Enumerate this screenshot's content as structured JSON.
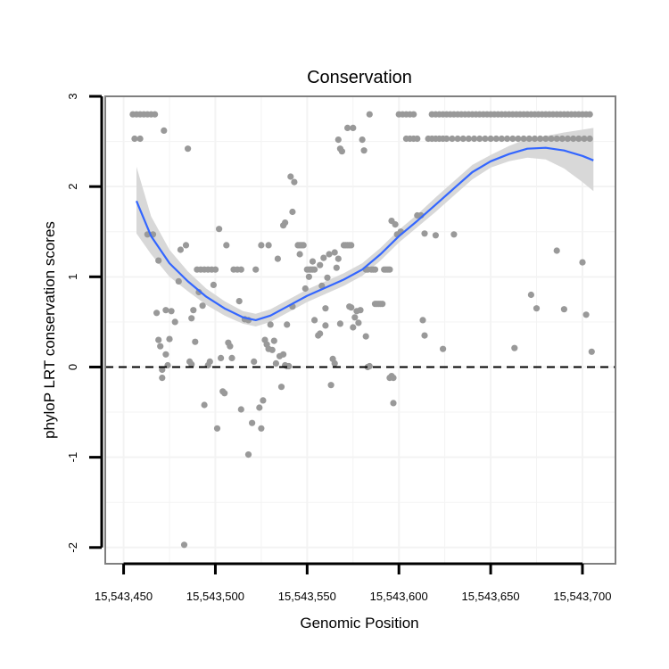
{
  "chart_data": {
    "type": "scatter",
    "title": "Conservation",
    "xlabel": "Genomic Position",
    "ylabel": "phyloP LRT conservation scores",
    "xlim": [
      15543440,
      15543718
    ],
    "ylim": [
      -2.18,
      3.0
    ],
    "x_ticks": [
      15543450,
      15543500,
      15543550,
      15543600,
      15543650,
      15543700
    ],
    "x_tick_labels": [
      "15,543,450",
      "15,543,500",
      "15,543,550",
      "15,543,600",
      "15,543,650",
      "15,543,700"
    ],
    "y_ticks": [
      -2,
      -1,
      0,
      1,
      2,
      3
    ],
    "y_tick_labels": [
      "-2",
      "-1",
      "0",
      "1",
      "2",
      "3"
    ],
    "reference_line": {
      "y": 0,
      "style": "dashed"
    },
    "colors": {
      "points": "#999999",
      "smooth_line": "#3366FF",
      "ribbon": "#d6d6d6",
      "panel_border": "#7f7f7f",
      "grid": "#f3f3f3"
    },
    "points": [
      [
        15543455,
        2.8
      ],
      [
        15543457,
        2.8
      ],
      [
        15543459,
        2.8
      ],
      [
        15543461,
        2.8
      ],
      [
        15543463,
        2.8
      ],
      [
        15543465,
        2.8
      ],
      [
        15543467,
        2.8
      ],
      [
        15543456,
        2.53
      ],
      [
        15543459,
        2.53
      ],
      [
        15543463,
        1.47
      ],
      [
        15543466,
        1.47
      ],
      [
        15543469,
        1.18
      ],
      [
        15543468,
        0.6
      ],
      [
        15543469,
        0.3
      ],
      [
        15543470,
        0.23
      ],
      [
        15543471,
        -0.12
      ],
      [
        15543471,
        -0.03
      ],
      [
        15543473,
        0.14
      ],
      [
        15543474,
        0.02
      ],
      [
        15543475,
        0.31
      ],
      [
        15543472,
        2.62
      ],
      [
        15543473,
        0.63
      ],
      [
        15543476,
        0.62
      ],
      [
        15543478,
        0.5
      ],
      [
        15543480,
        0.95
      ],
      [
        15543481,
        1.3
      ],
      [
        15543484,
        1.35
      ],
      [
        15543485,
        2.42
      ],
      [
        15543483,
        -1.97
      ],
      [
        15543487,
        0.54
      ],
      [
        15543488,
        0.63
      ],
      [
        15543489,
        0.28
      ],
      [
        15543486,
        0.06
      ],
      [
        15543487,
        0.03
      ],
      [
        15543490,
        1.08
      ],
      [
        15543492,
        1.08
      ],
      [
        15543494,
        1.08
      ],
      [
        15543496,
        1.08
      ],
      [
        15543498,
        1.08
      ],
      [
        15543500,
        1.08
      ],
      [
        15543491,
        0.83
      ],
      [
        15543493,
        0.68
      ],
      [
        15543494,
        -0.42
      ],
      [
        15543496,
        0.02
      ],
      [
        15543497,
        0.06
      ],
      [
        15543499,
        0.91
      ],
      [
        15543501,
        -0.68
      ],
      [
        15543502,
        1.53
      ],
      [
        15543503,
        0.1
      ],
      [
        15543504,
        -0.27
      ],
      [
        15543505,
        -0.29
      ],
      [
        15543506,
        1.35
      ],
      [
        15543507,
        0.27
      ],
      [
        15543508,
        0.23
      ],
      [
        15543509,
        0.1
      ],
      [
        15543510,
        1.08
      ],
      [
        15543512,
        1.08
      ],
      [
        15543514,
        1.08
      ],
      [
        15543513,
        0.73
      ],
      [
        15543514,
        -0.47
      ],
      [
        15543516,
        0.53
      ],
      [
        15543518,
        0.52
      ],
      [
        15543518,
        -0.97
      ],
      [
        15543520,
        -0.62
      ],
      [
        15543521,
        0.06
      ],
      [
        15543522,
        1.08
      ],
      [
        15543524,
        -0.45
      ],
      [
        15543525,
        -0.68
      ],
      [
        15543525,
        1.35
      ],
      [
        15543526,
        -0.37
      ],
      [
        15543527,
        0.3
      ],
      [
        15543528,
        0.25
      ],
      [
        15543529,
        1.35
      ],
      [
        15543529,
        0.2
      ],
      [
        15543530,
        0.47
      ],
      [
        15543531,
        0.19
      ],
      [
        15543532,
        0.29
      ],
      [
        15543533,
        0.04
      ],
      [
        15543534,
        1.2
      ],
      [
        15543535,
        0.12
      ],
      [
        15543536,
        -0.22
      ],
      [
        15543537,
        0.14
      ],
      [
        15543537,
        1.57
      ],
      [
        15543538,
        0.02
      ],
      [
        15543539,
        0.01
      ],
      [
        15543540,
        0.01
      ],
      [
        15543538,
        1.6
      ],
      [
        15543539,
        0.47
      ],
      [
        15543541,
        2.11
      ],
      [
        15543542,
        1.72
      ],
      [
        15543542,
        0.67
      ],
      [
        15543543,
        2.05
      ],
      [
        15543545,
        1.35
      ],
      [
        15543546,
        1.35
      ],
      [
        15543547,
        1.35
      ],
      [
        15543548,
        1.35
      ],
      [
        15543546,
        1.25
      ],
      [
        15543549,
        0.87
      ],
      [
        15543550,
        1.08
      ],
      [
        15543551,
        1.08
      ],
      [
        15543552,
        1.08
      ],
      [
        15543553,
        1.08
      ],
      [
        15543554,
        1.08
      ],
      [
        15543551,
        1.0
      ],
      [
        15543553,
        1.17
      ],
      [
        15543554,
        0.52
      ],
      [
        15543556,
        0.35
      ],
      [
        15543557,
        1.13
      ],
      [
        15543557,
        0.37
      ],
      [
        15543558,
        0.9
      ],
      [
        15543559,
        1.21
      ],
      [
        15543560,
        0.65
      ],
      [
        15543560,
        0.46
      ],
      [
        15543561,
        0.99
      ],
      [
        15543562,
        1.25
      ],
      [
        15543563,
        -0.2
      ],
      [
        15543564,
        0.09
      ],
      [
        15543565,
        1.27
      ],
      [
        15543565,
        0.04
      ],
      [
        15543566,
        1.1
      ],
      [
        15543567,
        1.2
      ],
      [
        15543568,
        0.48
      ],
      [
        15543570,
        1.35
      ],
      [
        15543571,
        1.35
      ],
      [
        15543572,
        1.35
      ],
      [
        15543573,
        1.35
      ],
      [
        15543574,
        1.35
      ],
      [
        15543567,
        2.52
      ],
      [
        15543568,
        2.42
      ],
      [
        15543569,
        2.39
      ],
      [
        15543572,
        2.65
      ],
      [
        15543575,
        2.65
      ],
      [
        15543573,
        0.67
      ],
      [
        15543574,
        0.66
      ],
      [
        15543575,
        0.44
      ],
      [
        15543576,
        0.55
      ],
      [
        15543577,
        0.62
      ],
      [
        15543578,
        0.49
      ],
      [
        15543579,
        0.63
      ],
      [
        15543580,
        2.52
      ],
      [
        15543581,
        2.4
      ],
      [
        15543582,
        1.08
      ],
      [
        15543583,
        1.08
      ],
      [
        15543584,
        2.8
      ],
      [
        15543582,
        0.34
      ],
      [
        15543583,
        0.0
      ],
      [
        15543584,
        0.01
      ],
      [
        15543585,
        1.08
      ],
      [
        15543586,
        1.08
      ],
      [
        15543587,
        1.08
      ],
      [
        15543587,
        0.7
      ],
      [
        15543588,
        0.7
      ],
      [
        15543589,
        0.7
      ],
      [
        15543590,
        0.7
      ],
      [
        15543591,
        0.7
      ],
      [
        15543592,
        1.08
      ],
      [
        15543593,
        1.08
      ],
      [
        15543594,
        1.08
      ],
      [
        15543595,
        1.08
      ],
      [
        15543595,
        -0.12
      ],
      [
        15543596,
        -0.1
      ],
      [
        15543597,
        -0.12
      ],
      [
        15543597,
        -0.4
      ],
      [
        15543596,
        1.62
      ],
      [
        15543598,
        1.58
      ],
      [
        15543599,
        1.47
      ],
      [
        15543601,
        1.5
      ],
      [
        15543600,
        2.8
      ],
      [
        15543602,
        2.8
      ],
      [
        15543604,
        2.8
      ],
      [
        15543606,
        2.8
      ],
      [
        15543608,
        2.8
      ],
      [
        15543604,
        2.53
      ],
      [
        15543606,
        2.53
      ],
      [
        15543608,
        2.53
      ],
      [
        15543610,
        2.53
      ],
      [
        15543610,
        1.68
      ],
      [
        15543612,
        1.68
      ],
      [
        15543613,
        0.52
      ],
      [
        15543614,
        0.35
      ],
      [
        15543614,
        1.48
      ],
      [
        15543618,
        2.8
      ],
      [
        15543620,
        2.8
      ],
      [
        15543622,
        2.8
      ],
      [
        15543624,
        2.8
      ],
      [
        15543626,
        2.8
      ],
      [
        15543628,
        2.8
      ],
      [
        15543630,
        2.8
      ],
      [
        15543616,
        2.53
      ],
      [
        15543618,
        2.53
      ],
      [
        15543620,
        2.53
      ],
      [
        15543622,
        2.53
      ],
      [
        15543624,
        2.53
      ],
      [
        15543626,
        2.53
      ],
      [
        15543620,
        1.46
      ],
      [
        15543624,
        0.2
      ],
      [
        15543629,
        2.53
      ],
      [
        15543630,
        1.47
      ],
      [
        15543632,
        2.8
      ],
      [
        15543634,
        2.8
      ],
      [
        15543636,
        2.8
      ],
      [
        15543638,
        2.8
      ],
      [
        15543640,
        2.8
      ],
      [
        15543642,
        2.8
      ],
      [
        15543644,
        2.8
      ],
      [
        15543646,
        2.8
      ],
      [
        15543648,
        2.8
      ],
      [
        15543650,
        2.8
      ],
      [
        15543652,
        2.8
      ],
      [
        15543654,
        2.8
      ],
      [
        15543656,
        2.8
      ],
      [
        15543658,
        2.8
      ],
      [
        15543660,
        2.8
      ],
      [
        15543662,
        2.8
      ],
      [
        15543664,
        2.8
      ],
      [
        15543666,
        2.8
      ],
      [
        15543668,
        2.8
      ],
      [
        15543670,
        2.8
      ],
      [
        15543672,
        2.8
      ],
      [
        15543674,
        2.8
      ],
      [
        15543676,
        2.8
      ],
      [
        15543678,
        2.8
      ],
      [
        15543680,
        2.8
      ],
      [
        15543682,
        2.8
      ],
      [
        15543684,
        2.8
      ],
      [
        15543686,
        2.8
      ],
      [
        15543688,
        2.8
      ],
      [
        15543690,
        2.8
      ],
      [
        15543692,
        2.8
      ],
      [
        15543694,
        2.8
      ],
      [
        15543696,
        2.8
      ],
      [
        15543698,
        2.8
      ],
      [
        15543700,
        2.8
      ],
      [
        15543702,
        2.8
      ],
      [
        15543704,
        2.8
      ],
      [
        15543632,
        2.53
      ],
      [
        15543635,
        2.53
      ],
      [
        15543638,
        2.53
      ],
      [
        15543641,
        2.53
      ],
      [
        15543644,
        2.53
      ],
      [
        15543647,
        2.53
      ],
      [
        15543650,
        2.53
      ],
      [
        15543653,
        2.53
      ],
      [
        15543656,
        2.53
      ],
      [
        15543659,
        2.53
      ],
      [
        15543662,
        2.53
      ],
      [
        15543665,
        2.53
      ],
      [
        15543668,
        2.53
      ],
      [
        15543671,
        2.53
      ],
      [
        15543674,
        2.53
      ],
      [
        15543677,
        2.53
      ],
      [
        15543680,
        2.53
      ],
      [
        15543683,
        2.53
      ],
      [
        15543686,
        2.53
      ],
      [
        15543689,
        2.53
      ],
      [
        15543692,
        2.53
      ],
      [
        15543695,
        2.53
      ],
      [
        15543698,
        2.53
      ],
      [
        15543701,
        2.53
      ],
      [
        15543704,
        2.53
      ],
      [
        15543663,
        0.21
      ],
      [
        15543672,
        0.8
      ],
      [
        15543675,
        0.65
      ],
      [
        15543686,
        1.29
      ],
      [
        15543690,
        0.64
      ],
      [
        15543700,
        1.16
      ],
      [
        15543702,
        0.58
      ],
      [
        15543705,
        0.17
      ]
    ],
    "smooth": {
      "x": [
        15543457,
        15543465,
        15543475,
        15543485,
        15543495,
        15543505,
        15543515,
        15543522,
        15543530,
        15543540,
        15543550,
        15543560,
        15543570,
        15543580,
        15543590,
        15543600,
        15543610,
        15543620,
        15543630,
        15543640,
        15543650,
        15543660,
        15543670,
        15543680,
        15543690,
        15543700,
        15543706
      ],
      "y": [
        1.84,
        1.45,
        1.15,
        0.95,
        0.78,
        0.65,
        0.55,
        0.52,
        0.57,
        0.68,
        0.79,
        0.88,
        0.97,
        1.08,
        1.25,
        1.45,
        1.62,
        1.8,
        1.98,
        2.16,
        2.28,
        2.36,
        2.42,
        2.43,
        2.4,
        2.34,
        2.29
      ],
      "lower": [
        1.48,
        1.25,
        1.0,
        0.84,
        0.69,
        0.57,
        0.48,
        0.45,
        0.5,
        0.61,
        0.72,
        0.81,
        0.9,
        1.01,
        1.18,
        1.38,
        1.55,
        1.72,
        1.9,
        2.08,
        2.21,
        2.28,
        2.32,
        2.3,
        2.2,
        2.05,
        1.95
      ],
      "upper": [
        2.22,
        1.67,
        1.3,
        1.06,
        0.87,
        0.73,
        0.62,
        0.59,
        0.64,
        0.75,
        0.86,
        0.95,
        1.04,
        1.15,
        1.32,
        1.52,
        1.69,
        1.88,
        2.06,
        2.24,
        2.35,
        2.45,
        2.53,
        2.56,
        2.6,
        2.63,
        2.65
      ]
    }
  }
}
